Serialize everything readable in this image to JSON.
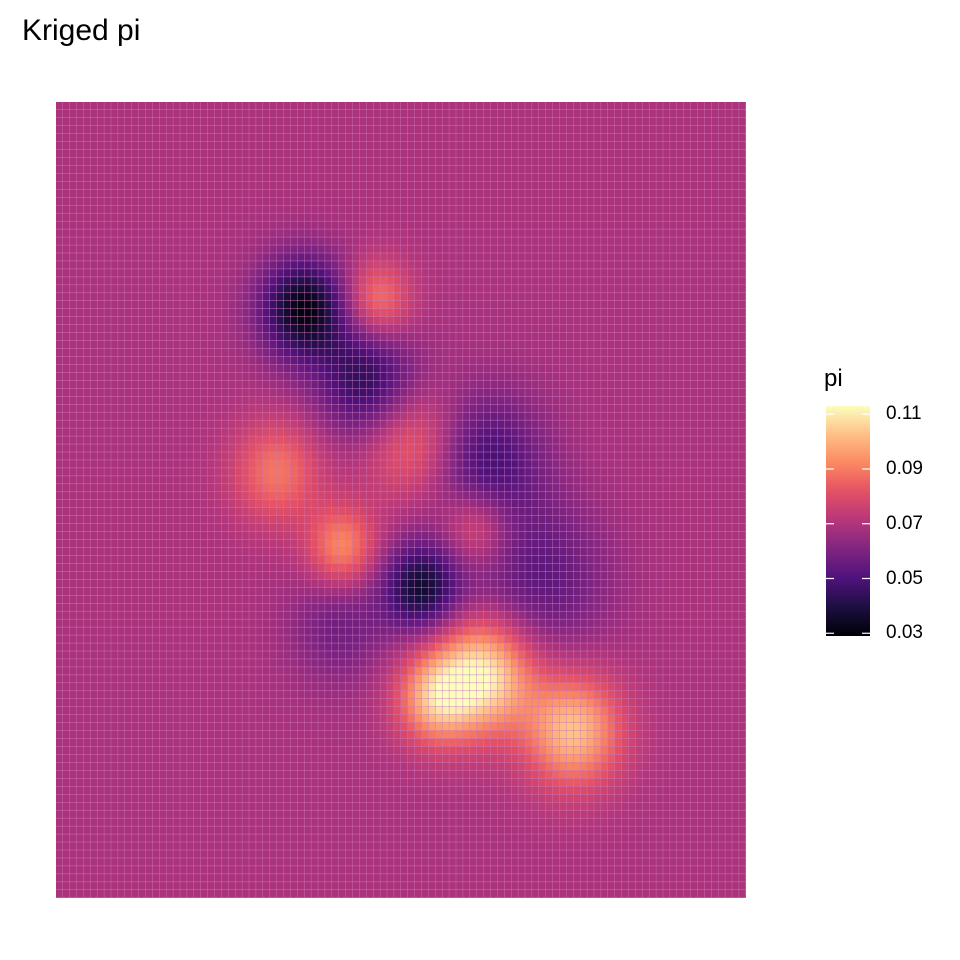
{
  "chart_data": {
    "type": "heatmap",
    "title": "Kriged pi",
    "xlabel": "",
    "ylabel": "",
    "grid": false,
    "axes_visible": false,
    "grid_resolution": [
      100,
      100
    ],
    "background_value": 0.069,
    "legend": {
      "title": "pi",
      "placement": "right",
      "colormap": "magma",
      "range": [
        0.029,
        0.113
      ],
      "ticks": [
        0.03,
        0.05,
        0.07,
        0.09,
        0.11
      ],
      "tick_labels": [
        "0.03",
        "0.05",
        "0.07",
        "0.09",
        "0.11"
      ]
    },
    "features": [
      {
        "x": 36,
        "y": 74,
        "sigma": 4.5,
        "peak_value": 0.031
      },
      {
        "x": 46.5,
        "y": 75,
        "sigma": 3.5,
        "peak_value": 0.091
      },
      {
        "x": 45,
        "y": 65,
        "sigma": 5,
        "peak_value": 0.043
      },
      {
        "x": 32,
        "y": 53.5,
        "sigma": 4.5,
        "peak_value": 0.089
      },
      {
        "x": 52,
        "y": 57,
        "sigma": 5,
        "peak_value": 0.088
      },
      {
        "x": 62,
        "y": 55,
        "sigma": 6,
        "peak_value": 0.047
      },
      {
        "x": 41.5,
        "y": 44,
        "sigma": 3.5,
        "peak_value": 0.093
      },
      {
        "x": 53,
        "y": 39,
        "sigma": 4,
        "peak_value": 0.037
      },
      {
        "x": 61,
        "y": 46.5,
        "sigma": 3.5,
        "peak_value": 0.086
      },
      {
        "x": 70,
        "y": 40,
        "sigma": 7,
        "peak_value": 0.053
      },
      {
        "x": 41,
        "y": 34,
        "sigma": 5,
        "peak_value": 0.057
      },
      {
        "x": 62,
        "y": 28,
        "sigma": 5,
        "peak_value": 0.111
      },
      {
        "x": 75,
        "y": 21,
        "sigma": 5,
        "peak_value": 0.103
      },
      {
        "x": 55,
        "y": 25,
        "sigma": 4,
        "peak_value": 0.099
      }
    ]
  }
}
